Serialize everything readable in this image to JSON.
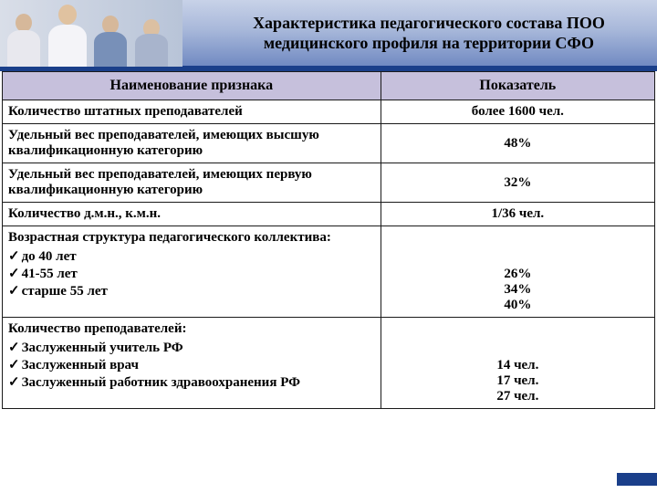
{
  "title": "Характеристика педагогического состава ПОО медицинского профиля на территории СФО",
  "colors": {
    "header_rule": "#1a3f8a",
    "th_bg": "#c6c0dc",
    "border": "#1a1a1a"
  },
  "columns": {
    "name": "Наименование признака",
    "value": "Показатель"
  },
  "rows": [
    {
      "name": "Количество штатных преподавателей",
      "value": "более 1600 чел."
    },
    {
      "name": "Удельный вес преподавателей, имеющих высшую квалификационную категорию",
      "value": "48%"
    },
    {
      "name": "Удельный вес преподавателей, имеющих первую квалификационную категорию",
      "value": "32%"
    },
    {
      "name": "Количество д.м.н., к.м.н.",
      "value": "1/36 чел."
    }
  ],
  "group_age": {
    "title": "Возрастная структура педагогического коллектива:",
    "items": [
      "до 40 лет",
      "41-55 лет",
      "старше 55 лет"
    ],
    "values": [
      "26%",
      "34%",
      "40%"
    ]
  },
  "group_teachers": {
    "title": "Количество преподавателей:",
    "items": [
      "Заслуженный учитель  РФ",
      "Заслуженный врач",
      "Заслуженный работник  здравоохранения РФ"
    ],
    "values": [
      "14 чел.",
      "17 чел.",
      "27 чел."
    ]
  }
}
